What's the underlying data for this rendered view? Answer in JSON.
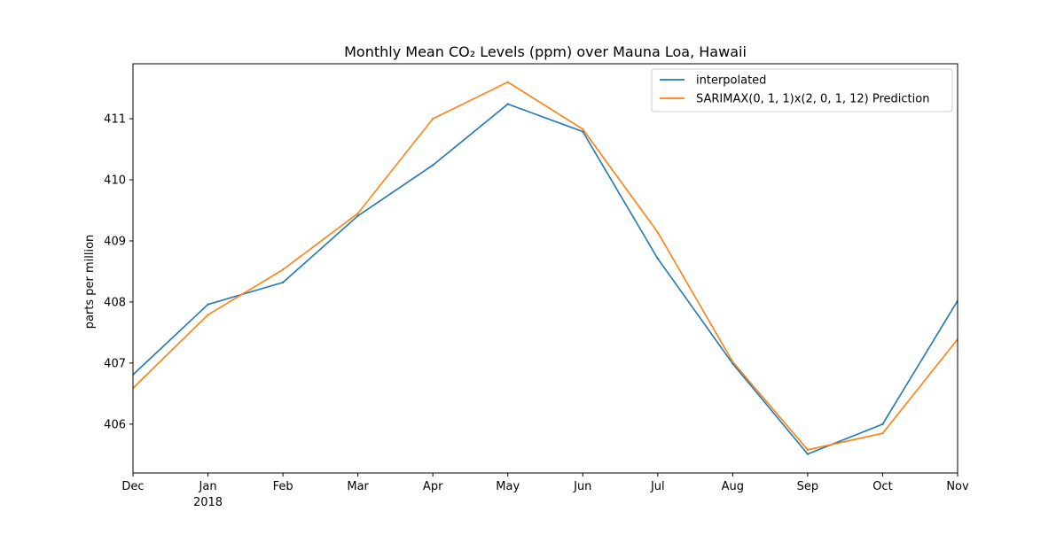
{
  "chart_data": {
    "type": "line",
    "title": "Monthly Mean CO₂ Levels (ppm) over Mauna Loa, Hawaii",
    "xlabel": "",
    "ylabel": "parts per million",
    "x": [
      "Dec",
      "Jan",
      "Feb",
      "Mar",
      "Apr",
      "May",
      "Jun",
      "Jul",
      "Aug",
      "Sep",
      "Oct",
      "Nov"
    ],
    "x_tick_labels": [
      "Dec",
      "Jan",
      "Feb",
      "Mar",
      "Apr",
      "May",
      "Jun",
      "Jul",
      "Aug",
      "Sep",
      "Oct",
      "Nov"
    ],
    "x_year_label": "2018",
    "y_ticks": [
      406,
      407,
      408,
      409,
      410,
      411
    ],
    "ylim": [
      405.2,
      411.9
    ],
    "grid": false,
    "legend_position": "top-right",
    "series": [
      {
        "name": "interpolated",
        "color": "#1f77b4",
        "values": [
          406.81,
          407.96,
          408.32,
          409.41,
          410.24,
          411.24,
          410.79,
          408.71,
          406.99,
          405.51,
          406.0,
          408.02
        ]
      },
      {
        "name": "SARIMAX(0, 1, 1)x(2, 0, 1, 12) Prediction",
        "color": "#ff7f0e",
        "values": [
          406.59,
          407.79,
          408.53,
          409.45,
          411.0,
          411.6,
          410.83,
          409.14,
          407.02,
          405.58,
          405.85,
          407.39
        ]
      }
    ]
  }
}
